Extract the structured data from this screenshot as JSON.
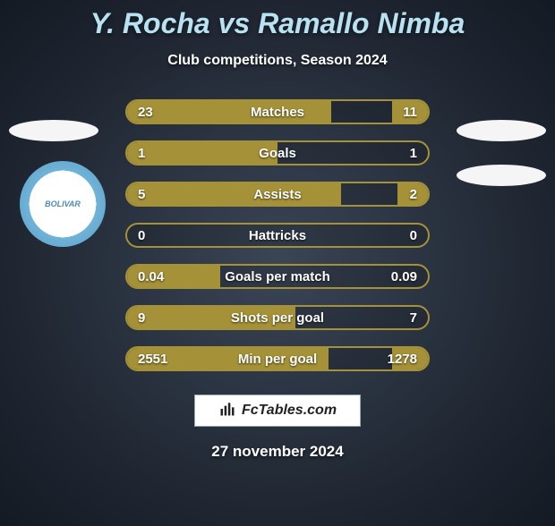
{
  "title": "Y. Rocha vs Ramallo Nimba",
  "subtitle": "Club competitions, Season 2024",
  "date": "27 november 2024",
  "watermark_text": "FcTables.com",
  "colors": {
    "accent": "#a59137",
    "title": "#b8e2f2",
    "text": "#ffffff",
    "bg_inner": "#3a4556",
    "bg_outer": "#141a24"
  },
  "club_left": {
    "name": "BOLIVAR"
  },
  "rows": [
    {
      "label": "Matches",
      "left_val": "23",
      "right_val": "11",
      "left_pct": 68,
      "right_pct": 12
    },
    {
      "label": "Goals",
      "left_val": "1",
      "right_val": "1",
      "left_pct": 50,
      "right_pct": 0
    },
    {
      "label": "Assists",
      "left_val": "5",
      "right_val": "2",
      "left_pct": 71,
      "right_pct": 10
    },
    {
      "label": "Hattricks",
      "left_val": "0",
      "right_val": "0",
      "left_pct": 0,
      "right_pct": 0
    },
    {
      "label": "Goals per match",
      "left_val": "0.04",
      "right_val": "0.09",
      "left_pct": 31,
      "right_pct": 0
    },
    {
      "label": "Shots per goal",
      "left_val": "9",
      "right_val": "7",
      "left_pct": 56,
      "right_pct": 0
    },
    {
      "label": "Min per goal",
      "left_val": "2551",
      "right_val": "1278",
      "left_pct": 67,
      "right_pct": 12
    }
  ]
}
